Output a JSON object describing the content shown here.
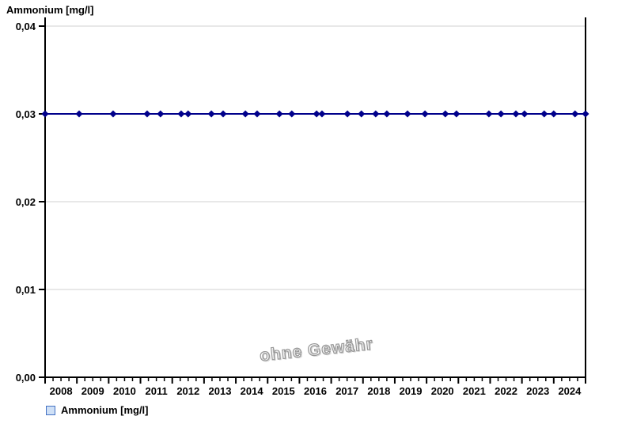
{
  "page": {
    "title": "Ammonium [mg/l]",
    "watermark": "ohne Gewähr"
  },
  "legend": {
    "label": "Ammonium [mg/l]"
  },
  "colors": {
    "series": "#00008b",
    "grid": "#e8e8e8",
    "axis": "#000000",
    "text": "#000000",
    "legend_swatch_fill": "#cfe0f6",
    "legend_swatch_border": "#4472c4",
    "watermark": "#979797"
  },
  "chart_data": {
    "type": "line",
    "title": "Ammonium [mg/l]",
    "xlabel": "",
    "ylabel": "Ammonium [mg/l]",
    "xlim": [
      2008,
      2025
    ],
    "ylim": [
      0,
      0.04
    ],
    "grid": "horizontal",
    "legend_position": "bottom-left",
    "x_tick_years": [
      2008,
      2009,
      2010,
      2011,
      2012,
      2013,
      2014,
      2015,
      2016,
      2017,
      2018,
      2019,
      2020,
      2021,
      2022,
      2023,
      2024
    ],
    "x_minor_tick_step_years": 0.25,
    "y_ticks": [
      {
        "value": 0.0,
        "label": "0,00"
      },
      {
        "value": 0.01,
        "label": "0,01"
      },
      {
        "value": 0.02,
        "label": "0,02"
      },
      {
        "value": 0.03,
        "label": "0,03"
      },
      {
        "value": 0.04,
        "label": "0,04"
      }
    ],
    "series": [
      {
        "name": "Ammonium [mg/l]",
        "color": "#00008b",
        "marker": "diamond",
        "x": [
          2008.0,
          2009.07,
          2010.14,
          2011.21,
          2011.63,
          2012.28,
          2012.5,
          2013.23,
          2013.6,
          2014.3,
          2014.67,
          2015.37,
          2015.76,
          2016.54,
          2016.71,
          2017.51,
          2017.95,
          2018.4,
          2018.75,
          2019.4,
          2019.95,
          2020.59,
          2020.94,
          2021.96,
          2022.34,
          2022.81,
          2023.08,
          2023.7,
          2024.0,
          2024.67,
          2025.0
        ],
        "y": [
          0.03,
          0.03,
          0.03,
          0.03,
          0.03,
          0.03,
          0.03,
          0.03,
          0.03,
          0.03,
          0.03,
          0.03,
          0.03,
          0.03,
          0.03,
          0.03,
          0.03,
          0.03,
          0.03,
          0.03,
          0.03,
          0.03,
          0.03,
          0.03,
          0.03,
          0.03,
          0.03,
          0.03,
          0.03,
          0.03,
          0.03
        ]
      }
    ]
  }
}
